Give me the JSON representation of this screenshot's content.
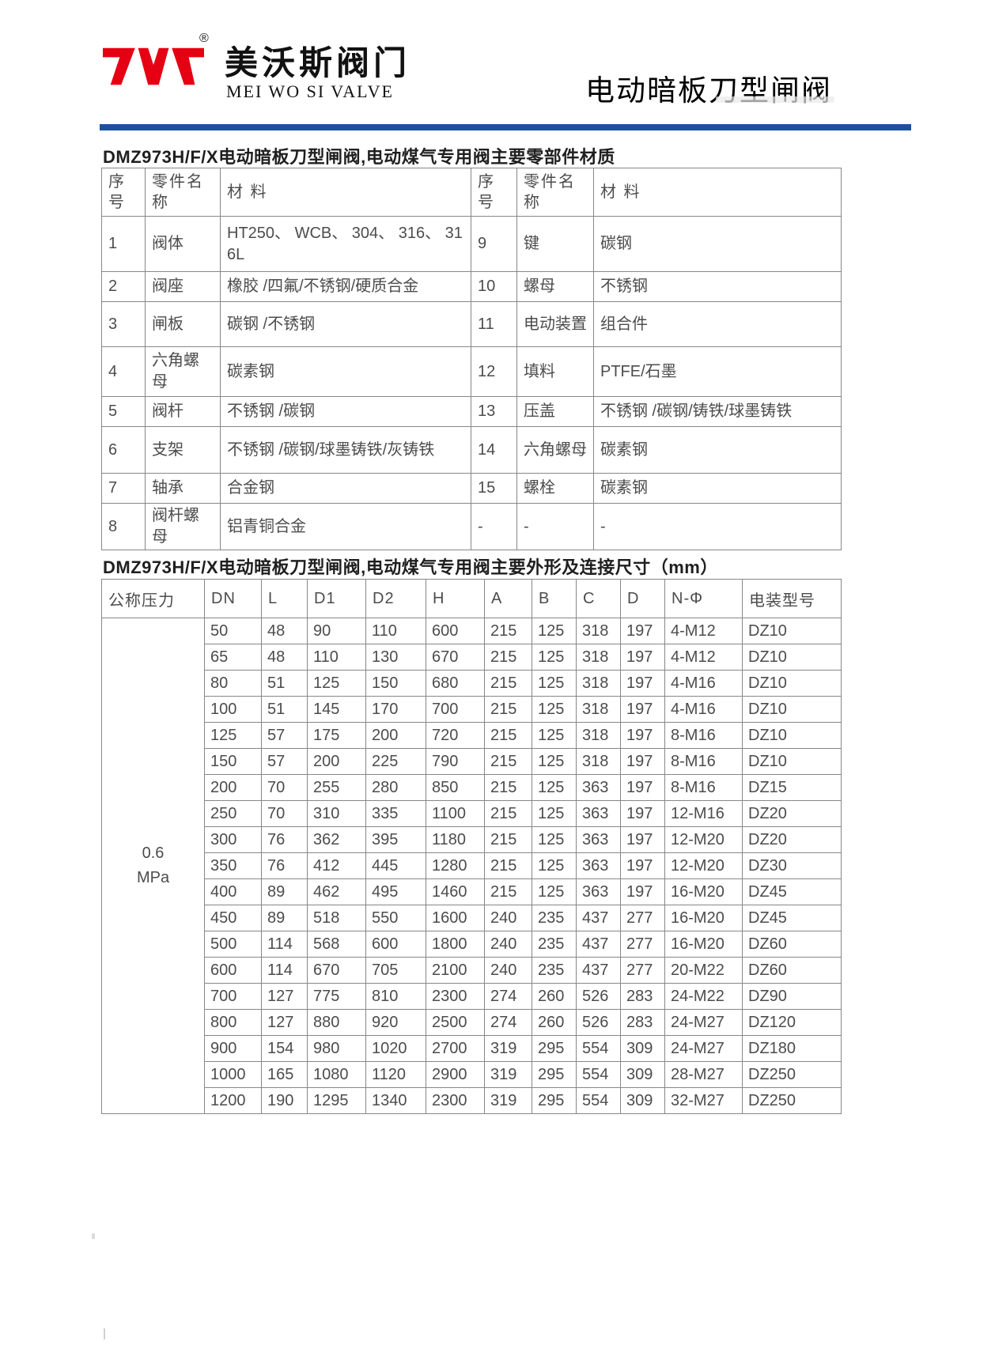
{
  "brand": {
    "logo_cn": "美沃斯阀门",
    "logo_en": "MEI WO SI VALVE",
    "registered": "®"
  },
  "page_title": "电动暗板刀型闸阀",
  "accent_colors": {
    "rule_blue": "#1d4f9e",
    "logo_red": "#e60013"
  },
  "materials_table": {
    "heading": "DMZ973H/F/X电动暗板刀型闸阀,电动煤气专用阀主要零部件材质",
    "header_labels": [
      "序号",
      "零件名称",
      "材 料",
      "序号",
      "零件名称",
      "材 料"
    ],
    "rows": [
      [
        "1",
        "阀体",
        "HT250、 WCB、 304、 316、 316L",
        "9",
        "键",
        "碳钢"
      ],
      [
        "2",
        "阀座",
        "橡胶 /四氟/不锈钢/硬质合金",
        "10",
        "螺母",
        "不锈钢"
      ],
      [
        "3",
        "闸板",
        "碳钢 /不锈钢",
        "11",
        "电动装置",
        "组合件"
      ],
      [
        "4",
        "六角螺母",
        "碳素钢",
        "12",
        "填料",
        "PTFE/石墨"
      ],
      [
        "5",
        "阀杆",
        "不锈钢 /碳钢",
        "13",
        "压盖",
        "不锈钢 /碳钢/铸铁/球墨铸铁"
      ],
      [
        "6",
        "支架",
        "不锈钢 /碳钢/球墨铸铁/灰铸铁",
        "14",
        "六角螺母",
        "碳素钢"
      ],
      [
        "7",
        "轴承",
        "合金钢",
        "15",
        "螺栓",
        "碳素钢"
      ],
      [
        "8",
        "阀杆螺母",
        "铝青铜合金",
        "-",
        "-",
        "-"
      ]
    ]
  },
  "dimensions_table": {
    "heading": "DMZ973H/F/X电动暗板刀型闸阀,电动煤气专用阀主要外形及连接尺寸（mm）",
    "pressure_label": "公称压力",
    "pressure_lines": [
      "0.6",
      "MPa"
    ],
    "columns": [
      "DN",
      "L",
      "D1",
      "D2",
      "H",
      "A",
      "B",
      "C",
      "D",
      "N-Φ",
      "电装型号"
    ],
    "rows": [
      [
        "50",
        "48",
        "90",
        "110",
        "600",
        "215",
        "125",
        "318",
        "197",
        "4-M12",
        "DZ10"
      ],
      [
        "65",
        "48",
        "110",
        "130",
        "670",
        "215",
        "125",
        "318",
        "197",
        "4-M12",
        "DZ10"
      ],
      [
        "80",
        "51",
        "125",
        "150",
        "680",
        "215",
        "125",
        "318",
        "197",
        "4-M16",
        "DZ10"
      ],
      [
        "100",
        "51",
        "145",
        "170",
        "700",
        "215",
        "125",
        "318",
        "197",
        "4-M16",
        "DZ10"
      ],
      [
        "125",
        "57",
        "175",
        "200",
        "720",
        "215",
        "125",
        "318",
        "197",
        "8-M16",
        "DZ10"
      ],
      [
        "150",
        "57",
        "200",
        "225",
        "790",
        "215",
        "125",
        "318",
        "197",
        "8-M16",
        "DZ10"
      ],
      [
        "200",
        "70",
        "255",
        "280",
        "850",
        "215",
        "125",
        "363",
        "197",
        "8-M16",
        "DZ15"
      ],
      [
        "250",
        "70",
        "310",
        "335",
        "1100",
        "215",
        "125",
        "363",
        "197",
        "12-M16",
        "DZ20"
      ],
      [
        "300",
        "76",
        "362",
        "395",
        "1180",
        "215",
        "125",
        "363",
        "197",
        "12-M20",
        "DZ20"
      ],
      [
        "350",
        "76",
        "412",
        "445",
        "1280",
        "215",
        "125",
        "363",
        "197",
        "12-M20",
        "DZ30"
      ],
      [
        "400",
        "89",
        "462",
        "495",
        "1460",
        "215",
        "125",
        "363",
        "197",
        "16-M20",
        "DZ45"
      ],
      [
        "450",
        "89",
        "518",
        "550",
        "1600",
        "240",
        "235",
        "437",
        "277",
        "16-M20",
        "DZ45"
      ],
      [
        "500",
        "114",
        "568",
        "600",
        "1800",
        "240",
        "235",
        "437",
        "277",
        "16-M20",
        "DZ60"
      ],
      [
        "600",
        "114",
        "670",
        "705",
        "2100",
        "240",
        "235",
        "437",
        "277",
        "20-M22",
        "DZ60"
      ],
      [
        "700",
        "127",
        "775",
        "810",
        "2300",
        "274",
        "260",
        "526",
        "283",
        "24-M22",
        "DZ90"
      ],
      [
        "800",
        "127",
        "880",
        "920",
        "2500",
        "274",
        "260",
        "526",
        "283",
        "24-M27",
        "DZ120"
      ],
      [
        "900",
        "154",
        "980",
        "1020",
        "2700",
        "319",
        "295",
        "554",
        "309",
        "24-M27",
        "DZ180"
      ],
      [
        "1000",
        "165",
        "1080",
        "1120",
        "2900",
        "319",
        "295",
        "554",
        "309",
        "28-M27",
        "DZ250"
      ],
      [
        "1200",
        "190",
        "1295",
        "1340",
        "2300",
        "319",
        "295",
        "554",
        "309",
        "32-M27",
        "DZ250"
      ]
    ]
  }
}
